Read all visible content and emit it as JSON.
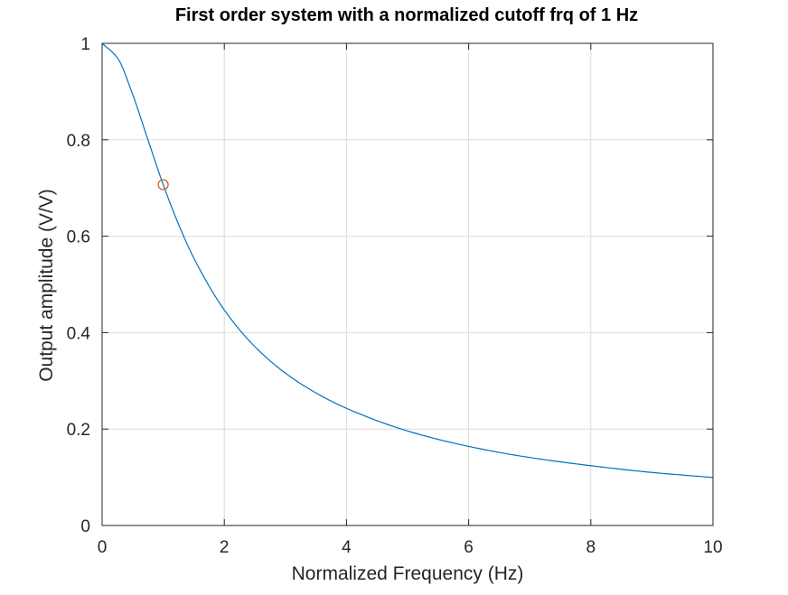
{
  "chart_data": {
    "type": "line",
    "title": "First order system with a normalized cutoff frq of 1 Hz",
    "xlabel": "Normalized Frequency (Hz)",
    "ylabel": "Output amplitude (V/V)",
    "xlim": [
      0,
      10
    ],
    "ylim": [
      0,
      1
    ],
    "xticks": [
      0,
      2,
      4,
      6,
      8,
      10
    ],
    "yticks": [
      0,
      0.2,
      0.4,
      0.6,
      0.8,
      1
    ],
    "xtick_labels": [
      "0",
      "2",
      "4",
      "6",
      "8",
      "10"
    ],
    "ytick_labels": [
      "0",
      "0.2",
      "0.4",
      "0.6",
      "0.8",
      "1"
    ],
    "grid": true,
    "series": [
      {
        "type": "line",
        "color": "#0072bd",
        "x": [
          0,
          0.25,
          0.5,
          0.75,
          1,
          1.25,
          1.5,
          2,
          2.5,
          3,
          3.5,
          4,
          5,
          6,
          7,
          8,
          9,
          10
        ],
        "y": [
          1,
          0.97,
          0.894,
          0.8,
          0.707,
          0.625,
          0.555,
          0.447,
          0.371,
          0.316,
          0.275,
          0.243,
          0.196,
          0.164,
          0.141,
          0.124,
          0.11,
          0.0995
        ]
      },
      {
        "type": "scatter",
        "marker": "circle",
        "color": "#d95319",
        "x": [
          1
        ],
        "y": [
          0.707
        ]
      }
    ]
  }
}
